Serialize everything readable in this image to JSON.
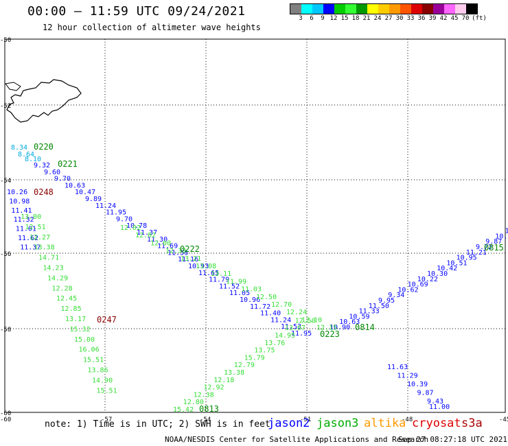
{
  "header": {
    "title": "00:00 – 11:59 UTC 09/24/2021",
    "subtitle": "12 hour collection of altimeter wave heights"
  },
  "legend": {
    "swatches": [
      "#808080",
      "#00ffff",
      "#00c8ff",
      "#0000ff",
      "#00cc00",
      "#33ff33",
      "#009900",
      "#ffff00",
      "#ffcc00",
      "#ff9900",
      "#ff5500",
      "#dd0000",
      "#880000",
      "#990099",
      "#ff66ff",
      "#ffccee",
      "#000000"
    ],
    "labels": [
      "3",
      "6",
      "9",
      "12",
      "15",
      "18",
      "21",
      "24",
      "27",
      "30",
      "33",
      "36",
      "39",
      "42",
      "45",
      "70",
      "(ft)"
    ]
  },
  "axes": {
    "lat_labels": [
      "-50",
      "-52",
      "-54",
      "-56",
      "-58",
      "-60"
    ],
    "lon_labels": [
      "-60",
      "-57",
      "-54",
      "-51",
      "-48",
      "-45"
    ]
  },
  "tracks": [
    {
      "satellite": "jason2",
      "color": "#0000ff",
      "values": [
        "10.26",
        "10.98",
        "11.41",
        "11.32",
        "11.01",
        "11.62",
        "11.37"
      ]
    },
    {
      "satellite": "jason2",
      "color": "#0000ff",
      "values": [
        "9.32",
        "9.60",
        "9.70",
        "10.63",
        "10.47",
        "9.89",
        "11.24",
        "11.95",
        "9.70",
        "10.78",
        "11.37",
        "11.30",
        "11.69",
        "11.56",
        "11.16",
        "10.93",
        "11.65",
        "11.79",
        "11.52",
        "11.05",
        "10.96",
        "11.72",
        "11.40",
        "11.24",
        "11.53",
        "11.95"
      ]
    },
    {
      "satellite": "jason2",
      "color": "#0000ff",
      "values": [
        "9.43",
        "9.87",
        "10.39",
        "11.29",
        "11.63"
      ]
    },
    {
      "satellite": "jason2",
      "color": "#0000ff",
      "values": [
        "10.90",
        "10.63",
        "10.59",
        "11.33",
        "11.50",
        "9.95",
        "9.34",
        "10.62",
        "10.69",
        "10.22",
        "10.30",
        "10.42",
        "10.51",
        "10.95",
        "11.21",
        "9.72",
        "9.87",
        "10.00",
        "11.20",
        "9"
      ]
    },
    {
      "satellite": "jason3",
      "color": "#33dd33",
      "values": [
        "12.02",
        "12.02",
        "12.00",
        "12.33",
        "13.21",
        "13.08",
        "13.11",
        "11.99",
        "11.03",
        "12.50",
        "12.70",
        "12.24",
        "12.10",
        "12.15"
      ]
    },
    {
      "satellite": "jason3",
      "color": "#33dd33",
      "values": [
        "13.00",
        "12.51",
        "12.27",
        "13.38",
        "14.71",
        "14.23",
        "14.29",
        "12.28",
        "12.45",
        "12.85",
        "13.17",
        "15.32",
        "15.00",
        "16.06",
        "15.51",
        "13.86",
        "14.90",
        "15.51"
      ]
    },
    {
      "satellite": "jason3",
      "color": "#33dd33",
      "values": [
        "15.42",
        "12.80",
        "12.38",
        "12.92",
        "12.18",
        "13.38",
        "12.79",
        "15.79",
        "13.75",
        "13.76",
        "14.95",
        "13.07",
        "12.50"
      ]
    }
  ],
  "track_start_values": [
    "8.34",
    "8.64",
    "8.10",
    "11.00"
  ],
  "pass_times": [
    {
      "text": "0220",
      "color": "#008800"
    },
    {
      "text": "0221",
      "color": "#008800"
    },
    {
      "text": "0248",
      "color": "#880000"
    },
    {
      "text": "0222",
      "color": "#008800"
    },
    {
      "text": "0247",
      "color": "#880000"
    },
    {
      "text": "0223",
      "color": "#008800"
    },
    {
      "text": "0814",
      "color": "#008800"
    },
    {
      "text": "0815",
      "color": "#008800"
    },
    {
      "text": "0813",
      "color": "#008800"
    }
  ],
  "footer": {
    "note": "note: 1) Time is in UTC; 2) SWH is in feet",
    "satellites": [
      {
        "name": "jason2",
        "color": "#0000ff"
      },
      {
        "name": "jason3",
        "color": "#00aa00"
      },
      {
        "name": "altika",
        "color": "#ff9900"
      },
      {
        "name": "cryosat",
        "color": "#dd0000"
      },
      {
        "name": "s3a",
        "color": "#aa0000"
      }
    ],
    "credit": "NOAA/NESDIS Center for Satellite Applications and Research",
    "timestamp": "Sep 27 08:27:18 UTC 2021"
  }
}
